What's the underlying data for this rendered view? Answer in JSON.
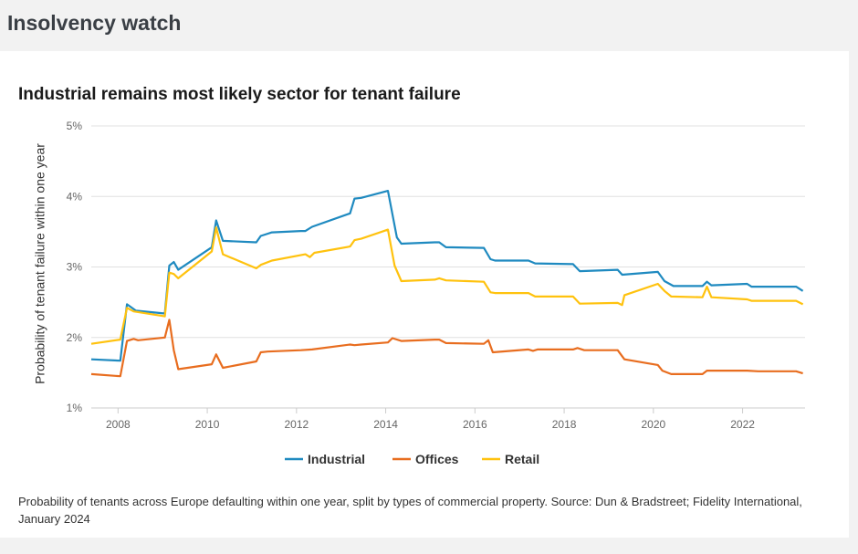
{
  "page": {
    "heading": "Insolvency watch",
    "caption": "Probability of tenants across Europe defaulting within one year, split by types of commercial property. Source: Dun & Bradstreet; Fidelity International, January 2024"
  },
  "colors": {
    "industrial": "#1f8ac0",
    "offices": "#e86d1f",
    "retail": "#ffc20e",
    "grid": "#e0e0e0"
  },
  "chart_data": {
    "type": "line",
    "title": "Industrial remains most likely sector for tenant failure",
    "xlabel": "",
    "ylabel": "Probability of tenant failure within one year",
    "xlim": [
      2007.4,
      2023.4
    ],
    "ylim": [
      1,
      5
    ],
    "x_ticks": [
      2008,
      2010,
      2012,
      2014,
      2016,
      2018,
      2020,
      2022
    ],
    "x_tick_labels": [
      "2008",
      "2010",
      "2012",
      "2014",
      "2016",
      "2018",
      "2020",
      "2022"
    ],
    "y_ticks": [
      1,
      2,
      3,
      4,
      5
    ],
    "y_tick_labels": [
      "1%",
      "2%",
      "3%",
      "4%",
      "5%"
    ],
    "grid": true,
    "legend_position": "bottom",
    "series": [
      {
        "name": "Industrial",
        "color_key": "industrial",
        "points": [
          [
            2007.4,
            1.69
          ],
          [
            2008.05,
            1.67
          ],
          [
            2008.2,
            2.47
          ],
          [
            2008.4,
            2.38
          ],
          [
            2009.05,
            2.34
          ],
          [
            2009.15,
            3.02
          ],
          [
            2009.25,
            3.07
          ],
          [
            2009.35,
            2.96
          ],
          [
            2010.1,
            3.28
          ],
          [
            2010.2,
            3.66
          ],
          [
            2010.35,
            3.37
          ],
          [
            2011.1,
            3.35
          ],
          [
            2011.2,
            3.44
          ],
          [
            2011.45,
            3.49
          ],
          [
            2012.1,
            3.51
          ],
          [
            2012.2,
            3.51
          ],
          [
            2012.35,
            3.57
          ],
          [
            2013.2,
            3.76
          ],
          [
            2013.3,
            3.97
          ],
          [
            2013.45,
            3.98
          ],
          [
            2014.05,
            4.08
          ],
          [
            2014.25,
            3.42
          ],
          [
            2014.35,
            3.33
          ],
          [
            2015.1,
            3.35
          ],
          [
            2015.2,
            3.35
          ],
          [
            2015.35,
            3.28
          ],
          [
            2016.2,
            3.27
          ],
          [
            2016.35,
            3.11
          ],
          [
            2016.45,
            3.09
          ],
          [
            2017.2,
            3.09
          ],
          [
            2017.35,
            3.05
          ],
          [
            2018.2,
            3.04
          ],
          [
            2018.35,
            2.94
          ],
          [
            2019.2,
            2.96
          ],
          [
            2019.3,
            2.89
          ],
          [
            2020.1,
            2.93
          ],
          [
            2020.25,
            2.8
          ],
          [
            2020.45,
            2.73
          ],
          [
            2021.1,
            2.73
          ],
          [
            2021.2,
            2.79
          ],
          [
            2021.3,
            2.74
          ],
          [
            2022.1,
            2.76
          ],
          [
            2022.2,
            2.72
          ],
          [
            2022.35,
            2.72
          ],
          [
            2023.2,
            2.72
          ],
          [
            2023.35,
            2.66
          ]
        ]
      },
      {
        "name": "Offices",
        "color_key": "offices",
        "points": [
          [
            2007.4,
            1.48
          ],
          [
            2008.05,
            1.45
          ],
          [
            2008.2,
            1.95
          ],
          [
            2008.35,
            1.98
          ],
          [
            2008.45,
            1.96
          ],
          [
            2009.05,
            2.0
          ],
          [
            2009.15,
            2.25
          ],
          [
            2009.25,
            1.82
          ],
          [
            2009.35,
            1.55
          ],
          [
            2010.1,
            1.62
          ],
          [
            2010.2,
            1.76
          ],
          [
            2010.35,
            1.57
          ],
          [
            2011.1,
            1.66
          ],
          [
            2011.2,
            1.79
          ],
          [
            2011.35,
            1.8
          ],
          [
            2012.1,
            1.82
          ],
          [
            2012.35,
            1.83
          ],
          [
            2013.2,
            1.9
          ],
          [
            2013.3,
            1.89
          ],
          [
            2013.45,
            1.9
          ],
          [
            2014.05,
            1.93
          ],
          [
            2014.15,
            1.99
          ],
          [
            2014.35,
            1.95
          ],
          [
            2015.1,
            1.97
          ],
          [
            2015.2,
            1.97
          ],
          [
            2015.35,
            1.92
          ],
          [
            2016.2,
            1.91
          ],
          [
            2016.3,
            1.96
          ],
          [
            2016.4,
            1.79
          ],
          [
            2017.2,
            1.83
          ],
          [
            2017.3,
            1.81
          ],
          [
            2017.4,
            1.83
          ],
          [
            2018.2,
            1.83
          ],
          [
            2018.3,
            1.85
          ],
          [
            2018.45,
            1.82
          ],
          [
            2019.2,
            1.82
          ],
          [
            2019.35,
            1.69
          ],
          [
            2020.1,
            1.61
          ],
          [
            2020.2,
            1.53
          ],
          [
            2020.4,
            1.48
          ],
          [
            2021.1,
            1.48
          ],
          [
            2021.2,
            1.53
          ],
          [
            2021.3,
            1.53
          ],
          [
            2022.1,
            1.53
          ],
          [
            2022.35,
            1.52
          ],
          [
            2023.2,
            1.52
          ],
          [
            2023.35,
            1.49
          ]
        ]
      },
      {
        "name": "Retail",
        "color_key": "retail",
        "points": [
          [
            2007.4,
            1.91
          ],
          [
            2008.05,
            1.97
          ],
          [
            2008.2,
            2.42
          ],
          [
            2008.35,
            2.37
          ],
          [
            2009.05,
            2.3
          ],
          [
            2009.15,
            2.92
          ],
          [
            2009.25,
            2.9
          ],
          [
            2009.35,
            2.84
          ],
          [
            2010.1,
            3.22
          ],
          [
            2010.2,
            3.56
          ],
          [
            2010.35,
            3.18
          ],
          [
            2011.1,
            2.98
          ],
          [
            2011.2,
            3.03
          ],
          [
            2011.45,
            3.09
          ],
          [
            2012.2,
            3.18
          ],
          [
            2012.3,
            3.14
          ],
          [
            2012.4,
            3.2
          ],
          [
            2013.2,
            3.29
          ],
          [
            2013.3,
            3.38
          ],
          [
            2013.45,
            3.4
          ],
          [
            2014.05,
            3.53
          ],
          [
            2014.2,
            3.02
          ],
          [
            2014.35,
            2.8
          ],
          [
            2015.1,
            2.82
          ],
          [
            2015.2,
            2.84
          ],
          [
            2015.35,
            2.81
          ],
          [
            2016.2,
            2.79
          ],
          [
            2016.35,
            2.64
          ],
          [
            2016.45,
            2.63
          ],
          [
            2017.2,
            2.63
          ],
          [
            2017.35,
            2.58
          ],
          [
            2018.2,
            2.58
          ],
          [
            2018.35,
            2.48
          ],
          [
            2019.2,
            2.49
          ],
          [
            2019.3,
            2.46
          ],
          [
            2019.35,
            2.6
          ],
          [
            2020.1,
            2.76
          ],
          [
            2020.25,
            2.66
          ],
          [
            2020.4,
            2.58
          ],
          [
            2021.1,
            2.57
          ],
          [
            2021.2,
            2.72
          ],
          [
            2021.3,
            2.57
          ],
          [
            2022.1,
            2.54
          ],
          [
            2022.2,
            2.52
          ],
          [
            2023.2,
            2.52
          ],
          [
            2023.35,
            2.47
          ]
        ]
      }
    ]
  }
}
